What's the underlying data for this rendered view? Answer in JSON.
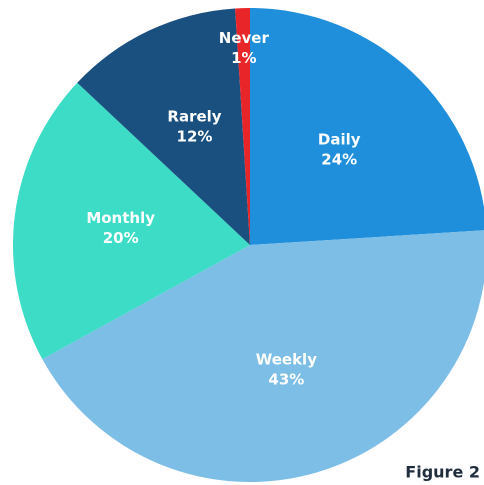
{
  "chart_data": {
    "type": "pie",
    "categories": [
      "Daily",
      "Weekly",
      "Monthly",
      "Rarely",
      "Never"
    ],
    "values": [
      24,
      43,
      20,
      12,
      1
    ],
    "value_labels": [
      "24%",
      "43%",
      "20%",
      "12%",
      "1%"
    ],
    "colors": [
      "#1f8fdc",
      "#7dbee6",
      "#3ddcc6",
      "#19507f",
      "#e8262a"
    ],
    "annotation": "Figure 2"
  }
}
